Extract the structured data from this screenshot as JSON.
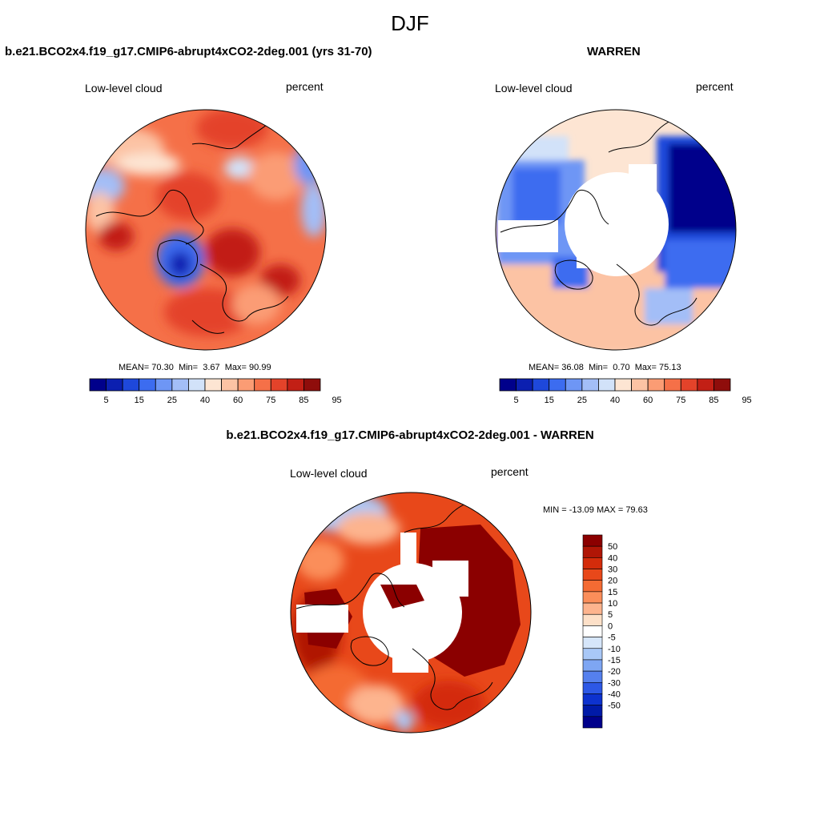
{
  "figure": {
    "title": "DJF"
  },
  "panels": [
    {
      "title": "b.e21.BCO2x4.f19_g17.CMIP6-abrupt4xCO2-2deg.001 (yrs 31-70)",
      "left_label": "Low-level cloud",
      "right_label": "percent",
      "stats": {
        "mean": "70.30",
        "min": "3.67",
        "max": "90.99"
      }
    },
    {
      "title": "WARREN",
      "left_label": "Low-level cloud",
      "right_label": "percent",
      "stats": {
        "mean": "36.08",
        "min": "0.70",
        "max": "75.13"
      }
    },
    {
      "title": "b.e21.BCO2x4.f19_g17.CMIP6-abrupt4xCO2-2deg.001 - WARREN",
      "left_label": "Low-level cloud",
      "right_label": "percent",
      "stats_text": "MIN = -13.09 MAX =  79.63"
    }
  ],
  "labels": {
    "mean": "MEAN=",
    "min": "Min=",
    "max": "Max="
  },
  "chart_data": [
    {
      "type": "heatmap",
      "projection": "polar-stereographic-north",
      "variable": "Low-level cloud",
      "units": "percent",
      "mean": 70.3,
      "min": 3.67,
      "max": 90.99,
      "colorbar": {
        "orientation": "horizontal",
        "tick_labels": [
          "5",
          "15",
          "25",
          "40",
          "60",
          "75",
          "85",
          "95"
        ],
        "colors": [
          "#00008b",
          "#0b1fb0",
          "#1e48db",
          "#3c6cf0",
          "#6e96f5",
          "#a3bef7",
          "#d2e2f9",
          "#fde5d3",
          "#fcc3a4",
          "#fb9c74",
          "#f57048",
          "#e4432a",
          "#c21f15",
          "#8f0d0b"
        ]
      }
    },
    {
      "type": "heatmap",
      "projection": "polar-stereographic-north",
      "variable": "Low-level cloud",
      "units": "percent",
      "mean": 36.08,
      "min": 0.7,
      "max": 75.13,
      "colorbar": {
        "orientation": "horizontal",
        "tick_labels": [
          "5",
          "15",
          "25",
          "40",
          "60",
          "75",
          "85",
          "95"
        ],
        "colors": [
          "#00008b",
          "#0b1fb0",
          "#1e48db",
          "#3c6cf0",
          "#6e96f5",
          "#a3bef7",
          "#d2e2f9",
          "#fde5d3",
          "#fcc3a4",
          "#fb9c74",
          "#f57048",
          "#e4432a",
          "#c21f15",
          "#8f0d0b"
        ]
      }
    },
    {
      "type": "heatmap",
      "projection": "polar-stereographic-north",
      "variable": "Low-level cloud",
      "units": "percent",
      "min": -13.09,
      "max": 79.63,
      "colorbar": {
        "orientation": "vertical",
        "tick_labels": [
          "50",
          "40",
          "30",
          "20",
          "15",
          "10",
          "5",
          "0",
          "-5",
          "-10",
          "-15",
          "-20",
          "-30",
          "-40",
          "-50"
        ],
        "colors": [
          "#8b0000",
          "#b01606",
          "#d42c0b",
          "#e8481a",
          "#f46b33",
          "#fb8e5a",
          "#fdb48e",
          "#fde0c8",
          "#ffffff",
          "#d6e6fa",
          "#a9c8f7",
          "#7ea6f3",
          "#5580ee",
          "#2d58e6",
          "#0d32cf",
          "#001aa8",
          "#00008b"
        ]
      }
    }
  ]
}
